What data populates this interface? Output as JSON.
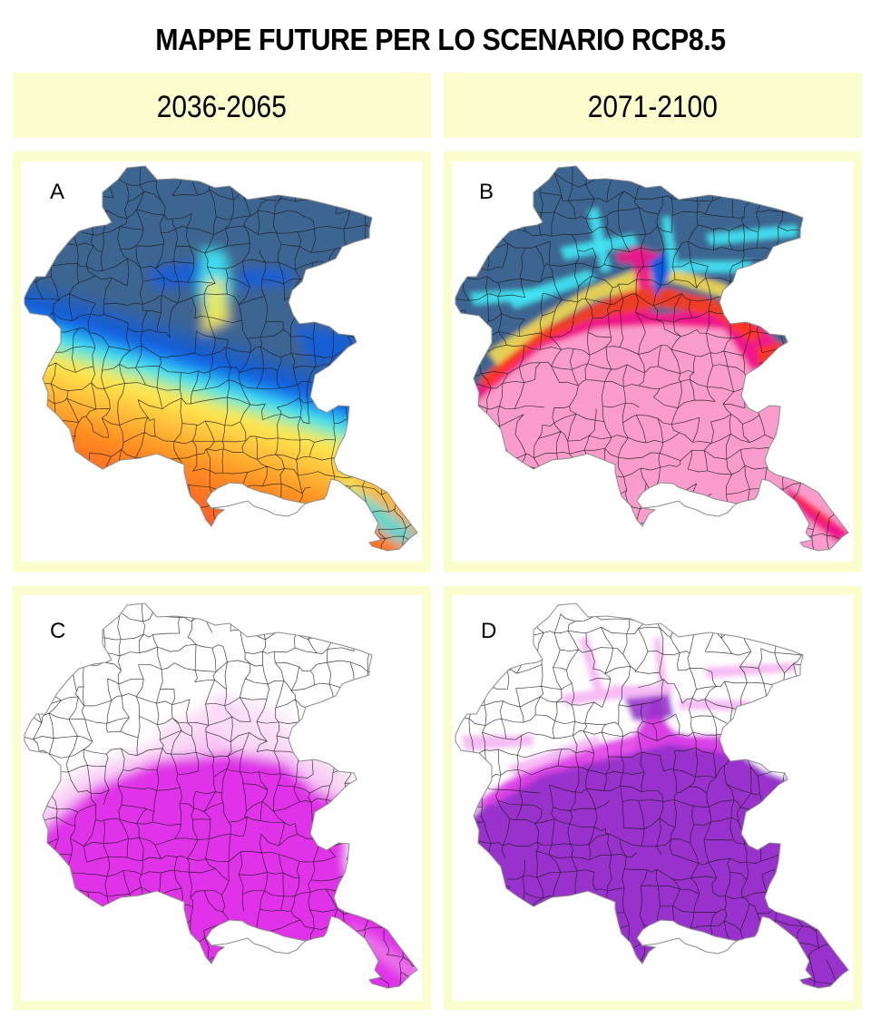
{
  "title": "MAPPE FUTURE PER LO SCENARIO RCP8.5",
  "columns": [
    {
      "label": "2036-2065"
    },
    {
      "label": "2071-2100"
    }
  ],
  "panels": [
    {
      "letter": "A",
      "period": "2036-2065",
      "palette": [
        "#3c6591",
        "#0a5ce6",
        "#3fe6f5",
        "#ffeb50",
        "#ff8a1e",
        "#ff2a3c"
      ]
    },
    {
      "letter": "B",
      "period": "2071-2100",
      "palette": [
        "#3c6591",
        "#0a5ce6",
        "#3fe6f5",
        "#ffe24a",
        "#ff3a1a",
        "#f0148c",
        "#f99ccb"
      ]
    },
    {
      "letter": "C",
      "period": "2036-2065",
      "palette": [
        "#ffffff",
        "#fbd8f6",
        "#e033e8"
      ]
    },
    {
      "letter": "D",
      "period": "2071-2100",
      "palette": [
        "#ffffff",
        "#f7b8f3",
        "#e040e8",
        "#9932cc"
      ]
    }
  ],
  "colors": {
    "panel_bg": "#fbfdcc",
    "boundary": "#1a1a1a",
    "outline": "#8a8a8a"
  }
}
